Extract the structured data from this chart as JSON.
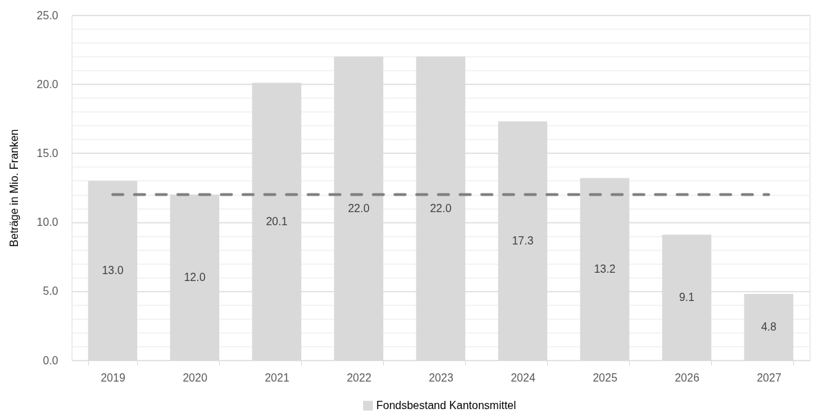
{
  "chart_data": {
    "type": "bar",
    "ylabel": "Beträge in Mio. Franken",
    "categories": [
      "2019",
      "2020",
      "2021",
      "2022",
      "2023",
      "2024",
      "2025",
      "2026",
      "2027"
    ],
    "series": [
      {
        "name": "Fondsbestand Kantonsmittel",
        "color": "#d9d9d9",
        "values": [
          13.0,
          12.0,
          20.1,
          22.0,
          22.0,
          17.3,
          13.2,
          9.1,
          4.8
        ],
        "value_labels": [
          "13.0",
          "12.0",
          "20.1",
          "22.0",
          "22.0",
          "17.3",
          "13.2",
          "9.1",
          "4.8"
        ]
      },
      {
        "type": "line",
        "color": "#7f7f7f",
        "line_style": "dashed",
        "values": [
          12,
          12,
          12,
          12,
          12,
          12,
          12,
          12,
          12
        ]
      }
    ],
    "ylim": [
      0,
      25
    ],
    "yticks": [
      {
        "value": 0,
        "label": "0.0"
      },
      {
        "value": 1,
        "label": null
      },
      {
        "value": 2,
        "label": null
      },
      {
        "value": 3,
        "label": null
      },
      {
        "value": 4,
        "label": null
      },
      {
        "value": 5,
        "label": "5.0"
      },
      {
        "value": 6,
        "label": null
      },
      {
        "value": 7,
        "label": null
      },
      {
        "value": 8,
        "label": null
      },
      {
        "value": 9,
        "label": null
      },
      {
        "value": 10,
        "label": "10.0"
      },
      {
        "value": 11,
        "label": null
      },
      {
        "value": 12,
        "label": null
      },
      {
        "value": 13,
        "label": null
      },
      {
        "value": 14,
        "label": null
      },
      {
        "value": 15,
        "label": "15.0"
      },
      {
        "value": 16,
        "label": null
      },
      {
        "value": 17,
        "label": null
      },
      {
        "value": 18,
        "label": null
      },
      {
        "value": 19,
        "label": null
      },
      {
        "value": 20,
        "label": "20.0"
      },
      {
        "value": 21,
        "label": null
      },
      {
        "value": 22,
        "label": null
      },
      {
        "value": 23,
        "label": null
      },
      {
        "value": 24,
        "label": null
      },
      {
        "value": 25,
        "label": "25.0"
      }
    ],
    "grid": "y",
    "legend": "bottom"
  }
}
